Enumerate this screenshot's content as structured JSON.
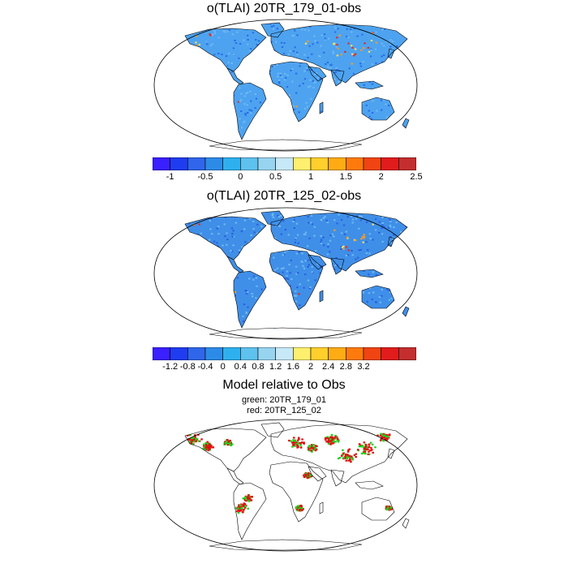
{
  "panels": [
    {
      "title": "o(TLAI) 20TR_179_01-obs",
      "colorbar": {
        "colors": [
          "#3a1fff",
          "#1f3cf0",
          "#2f66ea",
          "#2d8be8",
          "#2fb0ee",
          "#5ec1ee",
          "#97d4f0",
          "#c7e8f6",
          "#ffef6e",
          "#ffcf2c",
          "#ffab14",
          "#ff7a0c",
          "#f04412",
          "#e01c1c",
          "#c42e2e"
        ],
        "tick_labels": [
          "-1",
          "-0.5",
          "0",
          "0.5",
          "1",
          "1.5",
          "2",
          "2.5"
        ],
        "tick_boundaries": [
          1,
          3,
          5,
          7,
          9,
          11,
          13,
          15
        ]
      },
      "map_colors": {
        "land": "#4da3f0",
        "high": [
          "#ffe35a",
          "#ff9a20",
          "#e8261a"
        ],
        "low": "#2a6ee8"
      }
    },
    {
      "title": "o(TLAI) 20TR_125_02-obs",
      "colorbar": {
        "colors": [
          "#3a1fff",
          "#1f3cf0",
          "#2f66ea",
          "#2d8be8",
          "#2fb0ee",
          "#5ec1ee",
          "#97d4f0",
          "#c7e8f6",
          "#ffef6e",
          "#ffcf2c",
          "#ffab14",
          "#ff7a0c",
          "#f04412",
          "#e01c1c",
          "#c42e2e"
        ],
        "tick_labels": [
          "-1.2",
          "-0.8",
          "-0.4",
          "0",
          "0.4",
          "0.8",
          "1.2",
          "1.6",
          "2",
          "2.4",
          "2.8",
          "3.2"
        ],
        "tick_boundaries": [
          1,
          2,
          3,
          4,
          5,
          6,
          7,
          8,
          9,
          10,
          11,
          12
        ]
      },
      "map_colors": {
        "land": "#3f8fe8",
        "high": [
          "#ffe35a",
          "#ff9a20",
          "#e8261a"
        ],
        "low": "#2a5fe0"
      }
    },
    {
      "title": "Model relative to Obs",
      "subtitle_lines": [
        "green: 20TR_179_01",
        "red: 20TR_125_02"
      ],
      "map_colors": {
        "green": "#1fd41f",
        "red": "#e01010"
      }
    }
  ]
}
